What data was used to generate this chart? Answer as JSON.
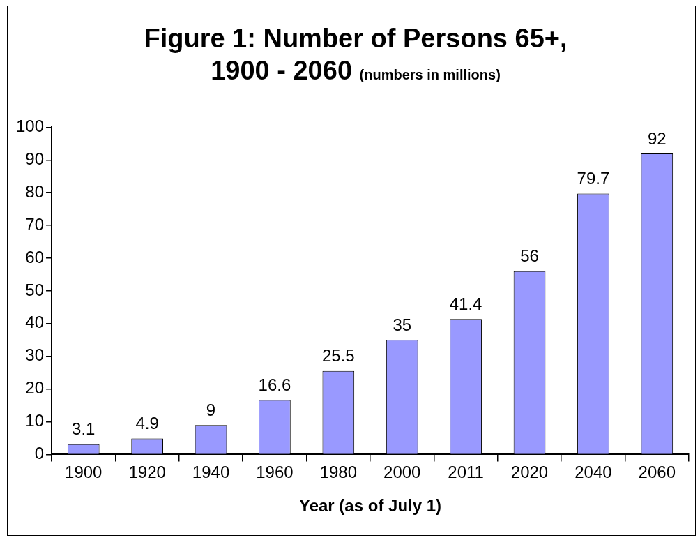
{
  "chart_data": {
    "type": "bar",
    "title": "Figure 1: Number of Persons 65+, 1900 - 2060",
    "subtitle": "(numbers in millions)",
    "xlabel": "Year (as of July 1)",
    "categories": [
      "1900",
      "1920",
      "1940",
      "1960",
      "1980",
      "2000",
      "2011",
      "2020",
      "2040",
      "2060"
    ],
    "values": [
      3.1,
      4.9,
      9,
      16.6,
      25.5,
      35,
      41.4,
      56,
      79.7,
      92
    ],
    "color": "#9999ff",
    "ylim": [
      0,
      100
    ],
    "yticks": [
      0,
      10,
      20,
      30,
      40,
      50,
      60,
      70,
      80,
      90,
      100
    ],
    "grid": false,
    "legend": false,
    "data_labels": true
  }
}
